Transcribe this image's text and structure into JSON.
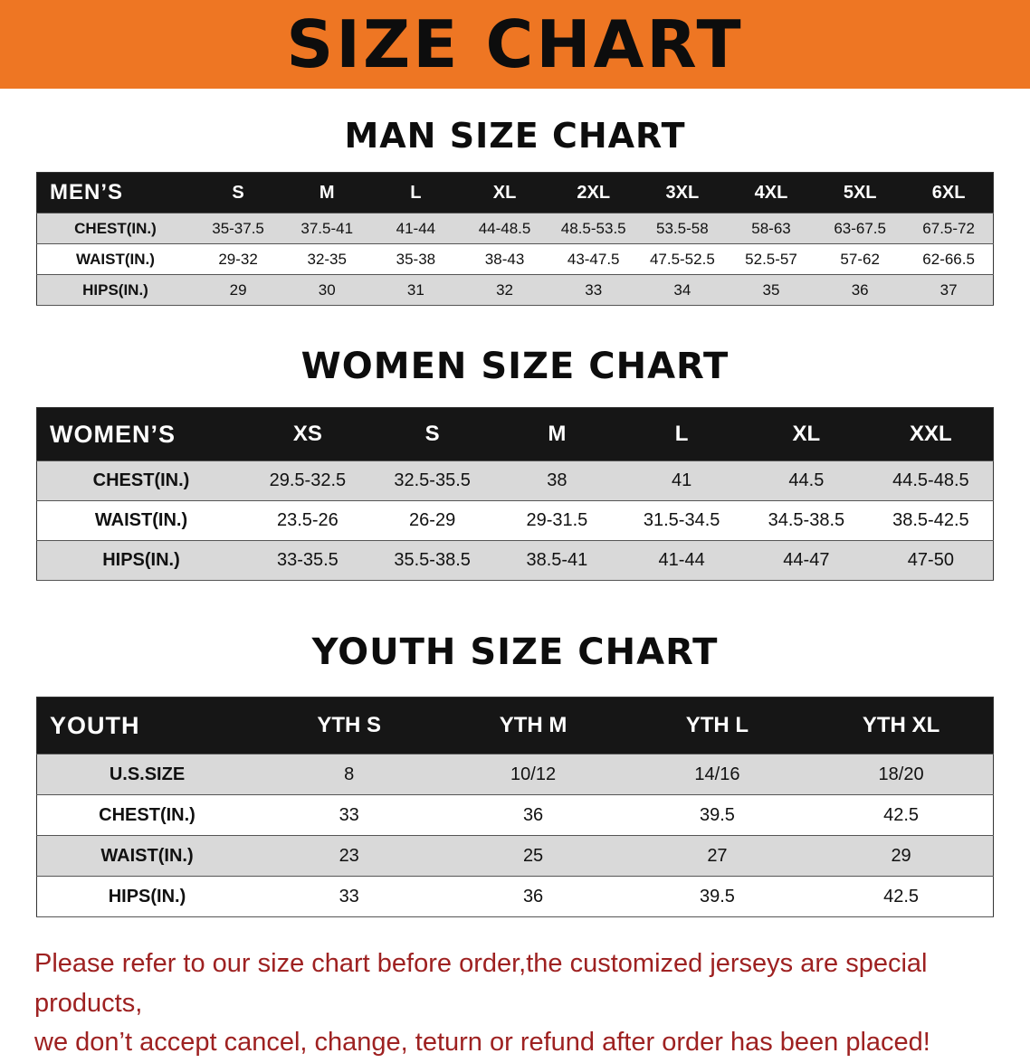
{
  "banner": {
    "title": "SIZE CHART"
  },
  "man": {
    "section_title": "MAN SIZE CHART",
    "corner_label": "MEN’S",
    "columns": [
      "S",
      "M",
      "L",
      "XL",
      "2XL",
      "3XL",
      "4XL",
      "5XL",
      "6XL"
    ],
    "rows": [
      {
        "label": "CHEST(IN.)",
        "values": [
          "35-37.5",
          "37.5-41",
          "41-44",
          "44-48.5",
          "48.5-53.5",
          "53.5-58",
          "58-63",
          "63-67.5",
          "67.5-72"
        ]
      },
      {
        "label": "WAIST(IN.)",
        "values": [
          "29-32",
          "32-35",
          "35-38",
          "38-43",
          "43-47.5",
          "47.5-52.5",
          "52.5-57",
          "57-62",
          "62-66.5"
        ]
      },
      {
        "label": "HIPS(IN.)",
        "values": [
          "29",
          "30",
          "31",
          "32",
          "33",
          "34",
          "35",
          "36",
          "37"
        ]
      }
    ]
  },
  "women": {
    "section_title": "WOMEN SIZE CHART",
    "corner_label": "WOMEN’S",
    "columns": [
      "XS",
      "S",
      "M",
      "L",
      "XL",
      "XXL"
    ],
    "rows": [
      {
        "label": "CHEST(IN.)",
        "values": [
          "29.5-32.5",
          "32.5-35.5",
          "38",
          "41",
          "44.5",
          "44.5-48.5"
        ]
      },
      {
        "label": "WAIST(IN.)",
        "values": [
          "23.5-26",
          "26-29",
          "29-31.5",
          "31.5-34.5",
          "34.5-38.5",
          "38.5-42.5"
        ]
      },
      {
        "label": "HIPS(IN.)",
        "values": [
          "33-35.5",
          "35.5-38.5",
          "38.5-41",
          "41-44",
          "44-47",
          "47-50"
        ]
      }
    ]
  },
  "youth": {
    "section_title": "YOUTH SIZE CHART",
    "corner_label": "YOUTH",
    "columns": [
      "YTH S",
      "YTH M",
      "YTH L",
      "YTH XL"
    ],
    "rows": [
      {
        "label": "U.S.SIZE",
        "values": [
          "8",
          "10/12",
          "14/16",
          "18/20"
        ]
      },
      {
        "label": "CHEST(IN.)",
        "values": [
          "33",
          "36",
          "39.5",
          "42.5"
        ]
      },
      {
        "label": "WAIST(IN.)",
        "values": [
          "23",
          "25",
          "27",
          "29"
        ]
      },
      {
        "label": "HIPS(IN.)",
        "values": [
          "33",
          "36",
          "39.5",
          "42.5"
        ]
      }
    ]
  },
  "footer": {
    "line1": "Please refer to our size chart before order,the customized jerseys are special products,",
    "line2": "we don’t accept cancel, change, teturn or refund after order has been placed!"
  },
  "colors": {
    "banner_bg": "#ee7623",
    "table_header_bg": "#161616",
    "stripe": "#d9d9d9",
    "footer_text": "#9e2121"
  }
}
